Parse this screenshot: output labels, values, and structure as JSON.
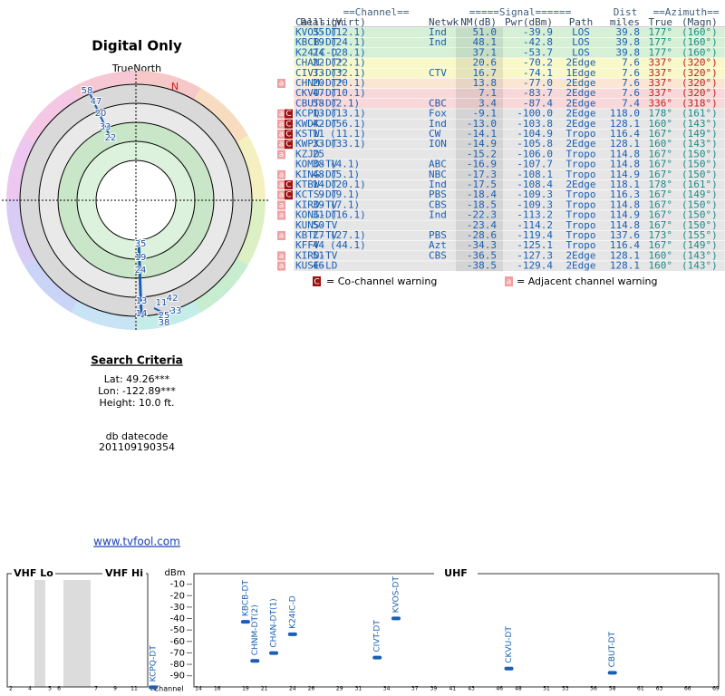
{
  "header": {
    "title": "Digital Only",
    "compass_label": "TrueNorth",
    "north_marker": "N"
  },
  "polar_labels": [
    "58",
    "47",
    "20",
    "33",
    "22",
    "35",
    "19",
    "24",
    "13",
    "14",
    "11",
    "42",
    "25",
    "33",
    "38"
  ],
  "table": {
    "header_top": [
      "==Channel==",
      "=====Signal======",
      "Dist",
      "==Azimuth=="
    ],
    "header": [
      "Callsign",
      "Real",
      "(Virt)",
      "Netwk",
      "NM(dB)",
      "Pwr(dBm)",
      "Path",
      "miles",
      "True",
      "(Magn)"
    ],
    "rows": [
      {
        "cells": [
          "KVOS-DT",
          "35",
          "(12.1)",
          "Ind",
          "51.0",
          "-39.9",
          "LOS",
          "39.8",
          "177°",
          "(160°)"
        ],
        "badges": [],
        "color": "#d6f0d6",
        "azimuth_color": "#1f8a8a"
      },
      {
        "cells": [
          "KBCB-DT",
          "19",
          "(24.1)",
          "Ind",
          "48.1",
          "-42.8",
          "LOS",
          "39.8",
          "177°",
          "(160°)"
        ],
        "badges": [],
        "color": "#d6f0d6",
        "azimuth_color": "#1f8a8a"
      },
      {
        "cells": [
          "K24IC-D",
          "24",
          "(28.1)",
          null,
          "37.1",
          "-53.7",
          "LOS",
          "39.8",
          "177°",
          "(160°)"
        ],
        "badges": [],
        "color": "#d6f0d6",
        "azimuth_color": "#1f8a8a"
      },
      {
        "cells": [
          "CHAN-DT*",
          "22",
          "(22.1)",
          null,
          "20.6",
          "-70.2",
          "2Edge",
          "7.6",
          "337°",
          "(320°)"
        ],
        "badges": [],
        "color": "#f8f8c8",
        "azimuth_color": "#c02020"
      },
      {
        "cells": [
          "CIVT-DT*",
          "33",
          "(32.1)",
          "CTV",
          "16.7",
          "-74.1",
          "1Edge",
          "7.6",
          "337°",
          "(320°)"
        ],
        "badges": [],
        "color": "#f8f8c8",
        "azimuth_color": "#c02020"
      },
      {
        "cells": [
          "CHNM-DT*",
          "20",
          "(20.1)",
          null,
          "13.8",
          "-77.0",
          "2Edge",
          "7.6",
          "337°",
          "(320°)"
        ],
        "badges": [
          "a"
        ],
        "color": "#fbe6d4",
        "azimuth_color": "#c02020"
      },
      {
        "cells": [
          "CKVU-DT",
          "47",
          "(10.1)",
          null,
          "7.1",
          "-83.7",
          "2Edge",
          "7.6",
          "337°",
          "(320°)"
        ],
        "badges": [],
        "color": "#f8d8d8",
        "azimuth_color": "#c02020"
      },
      {
        "cells": [
          "CBUT-DT",
          "58",
          "(2.1)",
          "CBC",
          "3.4",
          "-87.4",
          "2Edge",
          "7.4",
          "336°",
          "(318°)"
        ],
        "badges": [],
        "color": "#f8d8d8",
        "azimuth_color": "#c02020"
      },
      {
        "cells": [
          "KCPQ-DT",
          "13",
          "(13.1)",
          "Fox",
          "-9.1",
          "-100.0",
          "2Edge",
          "118.0",
          "178°",
          "(161°)"
        ],
        "badges": [
          "a",
          "C"
        ],
        "color": "#e6e6e6",
        "azimuth_color": "#1f8a8a"
      },
      {
        "cells": [
          "KWDK-DT",
          "42",
          "(56.1)",
          "Ind",
          "-13.0",
          "-103.8",
          "2Edge",
          "128.1",
          "160°",
          "(143°)"
        ],
        "badges": [
          "a",
          "C"
        ],
        "color": "#e6e6e6",
        "azimuth_color": "#1f8a8a"
      },
      {
        "cells": [
          "KSTW",
          "11",
          "(11.1)",
          "CW",
          "-14.1",
          "-104.9",
          "Tropo",
          "116.4",
          "167°",
          "(149°)"
        ],
        "badges": [
          "a",
          "C"
        ],
        "color": "#e6e6e6",
        "azimuth_color": "#1f8a8a"
      },
      {
        "cells": [
          "KWPX-DT",
          "33",
          "(33.1)",
          "ION",
          "-14.9",
          "-105.8",
          "2Edge",
          "128.1",
          "160°",
          "(143°)"
        ],
        "badges": [
          "a",
          "C"
        ],
        "color": "#e6e6e6",
        "azimuth_color": "#1f8a8a"
      },
      {
        "cells": [
          "KZJO",
          "25",
          null,
          null,
          "-15.2",
          "-106.0",
          "Tropo",
          "114.8",
          "167°",
          "(150°)"
        ],
        "badges": [
          "a"
        ],
        "color": "#e6e6e6",
        "azimuth_color": "#1f8a8a"
      },
      {
        "cells": [
          "KOMO-TV",
          "38",
          "(4.1)",
          "ABC",
          "-16.9",
          "-107.7",
          "Tropo",
          "114.8",
          "167°",
          "(150°)"
        ],
        "badges": [],
        "color": "#e6e6e6",
        "azimuth_color": "#1f8a8a"
      },
      {
        "cells": [
          "KING-DT",
          "48",
          "(5.1)",
          "NBC",
          "-17.3",
          "-108.1",
          "Tropo",
          "114.9",
          "167°",
          "(150°)"
        ],
        "badges": [
          "a"
        ],
        "color": "#e6e6e6",
        "azimuth_color": "#1f8a8a"
      },
      {
        "cells": [
          "KTBW-DT",
          "14",
          "(20.1)",
          "Ind",
          "-17.5",
          "-108.4",
          "2Edge",
          "118.1",
          "178°",
          "(161°)"
        ],
        "badges": [
          "a",
          "C"
        ],
        "color": "#e6e6e6",
        "azimuth_color": "#1f8a8a"
      },
      {
        "cells": [
          "KCTS-DT",
          "9",
          "(9.1)",
          "PBS",
          "-18.4",
          "-109.3",
          "Tropo",
          "116.3",
          "167°",
          "(149°)"
        ],
        "badges": [
          "a",
          "C"
        ],
        "color": "#e6e6e6",
        "azimuth_color": "#1f8a8a"
      },
      {
        "cells": [
          "KIRO-TV",
          "39",
          "(7.1)",
          "CBS",
          "-18.5",
          "-109.3",
          "Tropo",
          "114.8",
          "167°",
          "(150°)"
        ],
        "badges": [
          "a"
        ],
        "color": "#e6e6e6",
        "azimuth_color": "#1f8a8a"
      },
      {
        "cells": [
          "KONG-DT",
          "31",
          "(16.1)",
          "Ind",
          "-22.3",
          "-113.2",
          "Tropo",
          "114.9",
          "167°",
          "(150°)"
        ],
        "badges": [
          "a"
        ],
        "color": "#e6e6e6",
        "azimuth_color": "#1f8a8a"
      },
      {
        "cells": [
          "KUNS-TV",
          "50",
          null,
          null,
          "-23.4",
          "-114.2",
          "Tropo",
          "114.8",
          "167°",
          "(150°)"
        ],
        "badges": [],
        "color": "#e6e6e6",
        "azimuth_color": "#1f8a8a"
      },
      {
        "cells": [
          "KBTC-TV",
          "27",
          "(27.1)",
          "PBS",
          "-28.6",
          "-119.4",
          "Tropo",
          "137.6",
          "173°",
          "(155°)"
        ],
        "badges": [
          "a"
        ],
        "color": "#e6e6e6",
        "azimuth_color": "#1f8a8a"
      },
      {
        "cells": [
          "KFFV",
          "44",
          "(44.1)",
          "Azt",
          "-34.3",
          "-125.1",
          "Tropo",
          "116.4",
          "167°",
          "(149°)"
        ],
        "badges": [],
        "color": "#e6e6e6",
        "azimuth_color": "#1f8a8a"
      },
      {
        "cells": [
          "KIRO-TV",
          "51",
          null,
          "CBS",
          "-36.5",
          "-127.3",
          "2Edge",
          "128.1",
          "160°",
          "(143°)"
        ],
        "badges": [
          "a"
        ],
        "color": "#e6e6e6",
        "azimuth_color": "#1f8a8a"
      },
      {
        "cells": [
          "KUSE-LD",
          "46",
          null,
          null,
          "-38.5",
          "-129.4",
          "2Edge",
          "128.1",
          "160°",
          "(143°)"
        ],
        "badges": [
          "a"
        ],
        "color": "#e6e6e6",
        "azimuth_color": "#1f8a8a"
      }
    ]
  },
  "legend": {
    "co_icon": "C",
    "co_text": "= Co-channel warning",
    "adj_icon": "a",
    "adj_text": "= Adjacent channel warning"
  },
  "search": {
    "title": "Search Criteria",
    "lines": [
      "Lat: 49.26***",
      "Lon: -122.89***",
      "Height: 10.0 ft.",
      "db datecode",
      "201109190354"
    ],
    "link": "www.tvfool.com"
  },
  "chart_data": {
    "type": "scatter",
    "y_label": "dBm",
    "x_label": "Channel",
    "panels": [
      "VHF Lo",
      "VHF Hi",
      "UHF"
    ],
    "labels": [
      "KBCB-DT",
      "CHNM-DT(2)",
      "CHAN-DT(1)",
      "K24IC-D",
      "CIVT-DT",
      "KVOS-DT",
      "CKVU-DT",
      "CBUT-DT",
      "KCPQ-DT"
    ],
    "x": [
      19,
      20,
      22,
      24,
      33,
      35,
      47,
      58,
      13
    ],
    "values": [
      -42.8,
      -77.0,
      -70.2,
      -53.7,
      -74.1,
      -39.9,
      -83.7,
      -87.4,
      -100.0
    ],
    "color": "#1a5fb4",
    "ylim": [
      0,
      -95
    ],
    "yticks": [
      -10,
      -20,
      -30,
      -40,
      -50,
      -60,
      -70,
      -80,
      -90
    ],
    "xticks_vhf": [
      2,
      4,
      5,
      6,
      7,
      9,
      11,
      13
    ],
    "xticks_uhf": [
      14,
      16,
      19,
      21,
      24,
      26,
      29,
      31,
      34,
      37,
      39,
      41,
      43,
      46,
      48,
      51,
      53,
      56,
      58,
      61,
      63,
      66,
      69
    ]
  }
}
